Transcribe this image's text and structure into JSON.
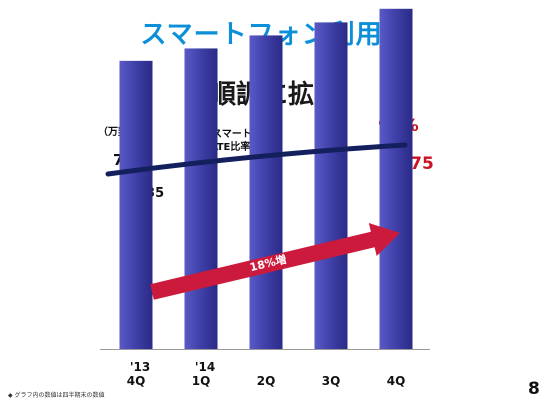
{
  "title": "スマートフォン利用数",
  "subtitle": "順調に拡大",
  "unit_label": "（万契約）",
  "footnote": "◆ グラフ内の数値は四半期末の数値",
  "page_number": "8",
  "chart_data": {
    "type": "bar",
    "categories": [
      "'13 4Q",
      "'14 1Q",
      "2Q",
      "3Q",
      "4Q"
    ],
    "category_lines": [
      [
        "'13",
        "4Q"
      ],
      [
        "'14",
        "1Q"
      ],
      [
        "",
        "2Q"
      ],
      [
        "",
        "3Q"
      ],
      [
        "",
        "4Q"
      ]
    ],
    "values": [
      2435,
      2540,
      2650,
      2760,
      2875
    ],
    "value_labels": {
      "start": "2,435",
      "end": "2,875"
    },
    "ylim": [
      0,
      3000
    ],
    "bar_color": "#3f3fa8",
    "overlay_line": {
      "name_lines": [
        "スマートフォン",
        "LTE比率"
      ],
      "start_label": "79%",
      "end_label": "92%",
      "values": [
        79,
        92
      ],
      "color": "#14205e"
    },
    "growth_arrow": {
      "label": "18%増",
      "color": "#cc1a3c"
    }
  }
}
